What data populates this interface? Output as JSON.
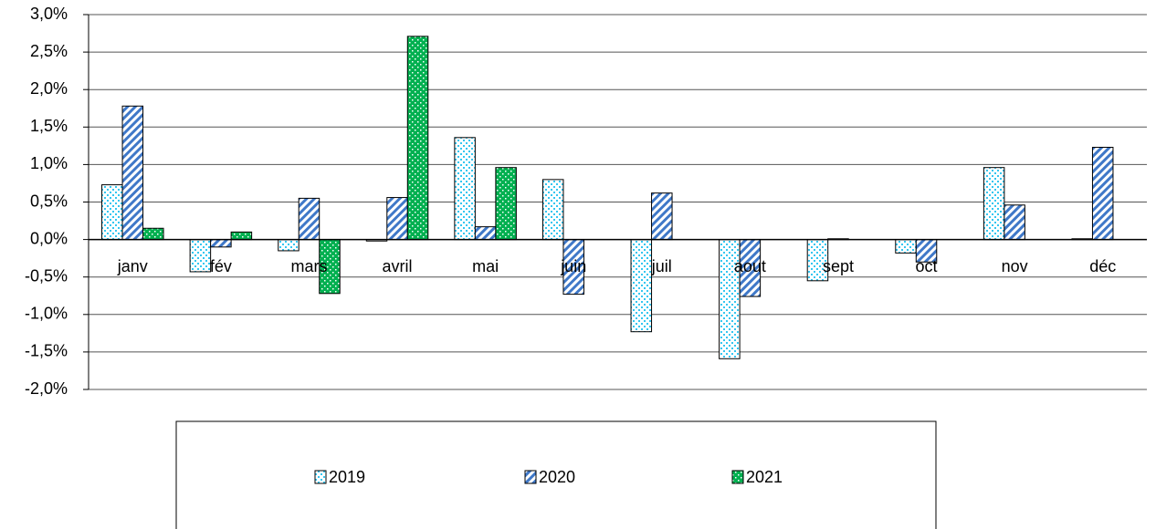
{
  "chart_data": {
    "type": "bar",
    "categories": [
      "janv",
      "fév",
      "mars",
      "avril",
      "mai",
      "juin",
      "juil",
      "aout",
      "sept",
      "oct",
      "nov",
      "déc"
    ],
    "series": [
      {
        "name": "2019",
        "color": "#33c6f0",
        "values": [
          0.73,
          -0.43,
          -0.15,
          -0.02,
          1.36,
          0.8,
          -1.23,
          -1.59,
          -0.55,
          -0.18,
          0.96,
          0.01
        ]
      },
      {
        "name": "2020",
        "color": "#3f78c8",
        "values": [
          1.78,
          -0.1,
          0.55,
          0.56,
          0.17,
          -0.73,
          0.62,
          -0.76,
          0.01,
          -0.3,
          0.46,
          1.23
        ]
      },
      {
        "name": "2021",
        "color": "#00b050",
        "values": [
          0.15,
          0.1,
          -0.72,
          2.71,
          0.96,
          null,
          null,
          null,
          null,
          null,
          null,
          null
        ]
      }
    ],
    "ylim": [
      -2.0,
      3.0
    ],
    "yticks": [
      {
        "value": -2.0,
        "label": "-2,0%"
      },
      {
        "value": -1.5,
        "label": "-1,5%"
      },
      {
        "value": -1.0,
        "label": "-1,0%"
      },
      {
        "value": -0.5,
        "label": "-0,5%"
      },
      {
        "value": 0.0,
        "label": "0,0%"
      },
      {
        "value": 0.5,
        "label": "0,5%"
      },
      {
        "value": 1.0,
        "label": "1,0%"
      },
      {
        "value": 1.5,
        "label": "1,5%"
      },
      {
        "value": 2.0,
        "label": "2,0%"
      },
      {
        "value": 2.5,
        "label": "2,5%"
      },
      {
        "value": 3.0,
        "label": "3,0%"
      }
    ],
    "grid": true
  }
}
